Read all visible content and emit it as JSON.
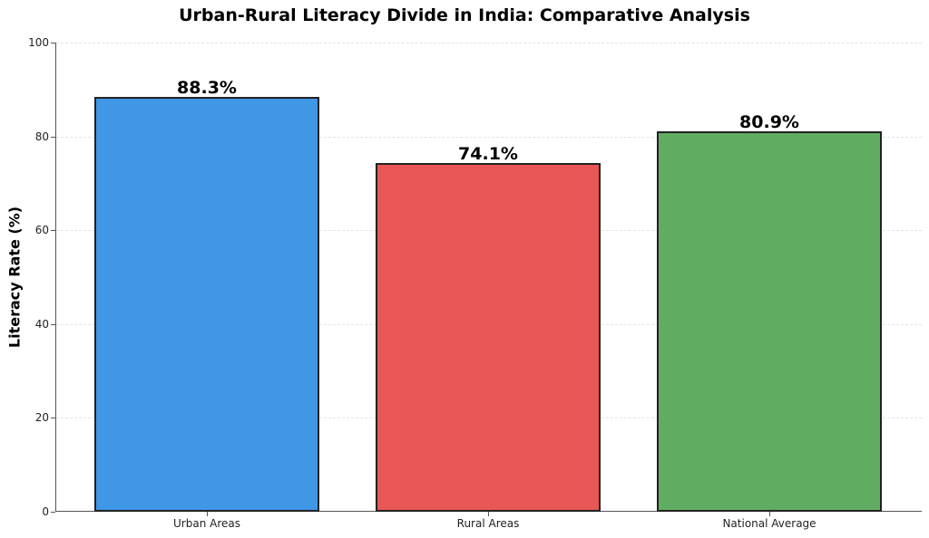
{
  "chart_data": {
    "type": "bar",
    "title": "Urban-Rural Literacy Divide in India: Comparative Analysis",
    "xlabel": "",
    "ylabel": "Literacy Rate (%)",
    "categories": [
      "Urban Areas",
      "Rural Areas",
      "National Average"
    ],
    "values": [
      88.3,
      74.1,
      80.9
    ],
    "value_labels": [
      "88.3%",
      "74.1%",
      "80.9%"
    ],
    "colors": [
      "#3f97e6",
      "#e85755",
      "#60ad62"
    ],
    "ylim": [
      0,
      100
    ],
    "yticks": [
      0,
      20,
      40,
      60,
      80,
      100
    ],
    "grid": "y-dashed",
    "legend": "none"
  }
}
